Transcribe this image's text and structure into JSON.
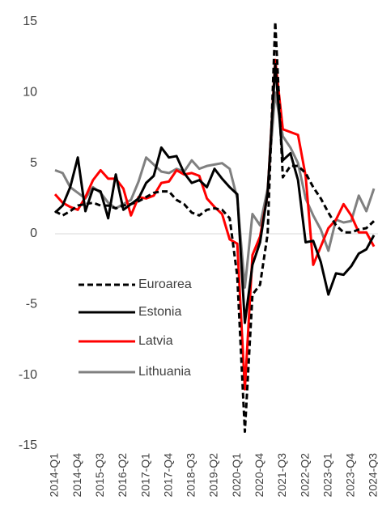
{
  "chart_data": {
    "type": "line",
    "categories": [
      "2014-Q1",
      null,
      null,
      "2014-Q4",
      null,
      null,
      "2015-Q3",
      null,
      null,
      "2016-Q2",
      null,
      null,
      "2017-Q1",
      null,
      null,
      "2017-Q4",
      null,
      null,
      "2018-Q3",
      null,
      null,
      "2019-Q2",
      null,
      null,
      "2020-Q1",
      null,
      null,
      "2020-Q4",
      null,
      null,
      "2021-Q3",
      null,
      null,
      "2022-Q2",
      null,
      null,
      "2023-Q1",
      null,
      null,
      "2023-Q4",
      null,
      null,
      "2024-Q3"
    ],
    "series": [
      {
        "name": "Euroarea",
        "color": "#000000",
        "line_style": "dashed",
        "values": [
          1.6,
          1.3,
          1.6,
          2.0,
          2.1,
          2.2,
          2.0,
          2.0,
          1.8,
          2.0,
          2.1,
          2.3,
          2.6,
          2.9,
          3.0,
          3.0,
          2.4,
          2.1,
          1.5,
          1.3,
          1.7,
          1.8,
          1.7,
          1.1,
          -3.0,
          -14.0,
          -4.3,
          -3.6,
          0.0,
          15.0,
          4.0,
          4.8,
          4.8,
          4.3,
          3.3,
          2.5,
          1.5,
          0.6,
          0.1,
          0.1,
          0.3,
          0.4,
          0.9
        ]
      },
      {
        "name": "Estonia",
        "color": "#000000",
        "line_style": "solid",
        "values": [
          1.5,
          2.0,
          3.3,
          5.4,
          1.6,
          3.2,
          3.0,
          1.1,
          4.2,
          1.7,
          2.1,
          2.5,
          3.6,
          4.1,
          6.1,
          5.4,
          5.5,
          4.3,
          3.6,
          3.8,
          3.3,
          4.6,
          3.9,
          3.3,
          2.8,
          -6.3,
          -2.2,
          -0.6,
          2.9,
          12.0,
          5.2,
          5.7,
          3.8,
          -0.6,
          -0.5,
          -2.0,
          -4.3,
          -2.8,
          -2.9,
          -2.3,
          -1.4,
          -1.1,
          -0.1
        ]
      },
      {
        "name": "Latvia",
        "color": "#ff0000",
        "line_style": "solid",
        "values": [
          2.8,
          2.2,
          1.9,
          1.7,
          2.6,
          3.8,
          4.5,
          3.9,
          3.9,
          3.2,
          1.3,
          2.6,
          2.5,
          2.7,
          3.6,
          3.7,
          4.5,
          4.2,
          4.3,
          4.1,
          2.5,
          1.9,
          1.4,
          -0.4,
          -0.7,
          -11.0,
          -1.5,
          -0.2,
          2.8,
          12.3,
          7.4,
          7.2,
          7.0,
          4.1,
          -2.2,
          -0.9,
          0.4,
          1.0,
          2.1,
          1.3,
          0.1,
          0.1,
          -0.9
        ]
      },
      {
        "name": "Lithuania",
        "color": "#808080",
        "line_style": "solid",
        "values": [
          4.5,
          4.3,
          3.3,
          2.9,
          2.5,
          3.3,
          2.9,
          2.2,
          1.8,
          2.1,
          2.4,
          3.7,
          5.4,
          4.9,
          4.4,
          4.3,
          4.6,
          4.4,
          5.2,
          4.6,
          4.8,
          4.9,
          5.0,
          4.6,
          2.5,
          -3.8,
          1.4,
          0.6,
          3.2,
          10.0,
          6.9,
          6.1,
          5.0,
          2.5,
          1.3,
          0.3,
          -1.2,
          1.0,
          0.8,
          0.9,
          2.7,
          1.6,
          3.2
        ]
      }
    ],
    "ylim": [
      -15,
      15
    ],
    "yticks": [
      -15,
      -10,
      -5,
      0,
      5,
      10,
      15
    ],
    "grid": false,
    "legend": "lower left"
  }
}
